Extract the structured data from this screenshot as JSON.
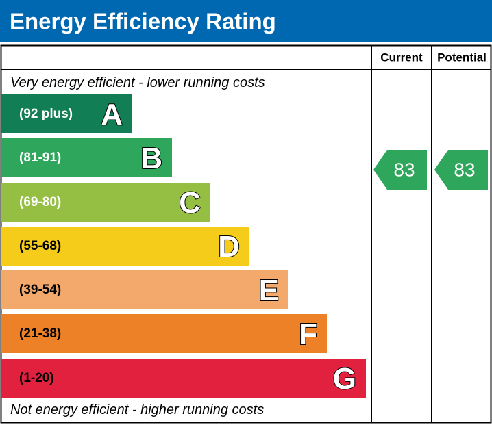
{
  "header": {
    "title": "Energy Efficiency Rating"
  },
  "columns": [
    "Current",
    "Potential"
  ],
  "top_note": "Very energy efficient - lower running costs",
  "bottom_note": "Not energy efficient - higher running costs",
  "bands": [
    {
      "range": "(92 plus)",
      "letter": "A",
      "color": "#117e55"
    },
    {
      "range": "(81-91)",
      "letter": "B",
      "color": "#2ea65b"
    },
    {
      "range": "(69-80)",
      "letter": "C",
      "color": "#95bf43"
    },
    {
      "range": "(55-68)",
      "letter": "D",
      "color": "#f5cc1a"
    },
    {
      "range": "(39-54)",
      "letter": "E",
      "color": "#f2a96b"
    },
    {
      "range": "(21-38)",
      "letter": "F",
      "color": "#ec8128"
    },
    {
      "range": "(1-20)",
      "letter": "G",
      "color": "#e2213f"
    }
  ],
  "ratings": {
    "current": 83,
    "potential": 83
  }
}
